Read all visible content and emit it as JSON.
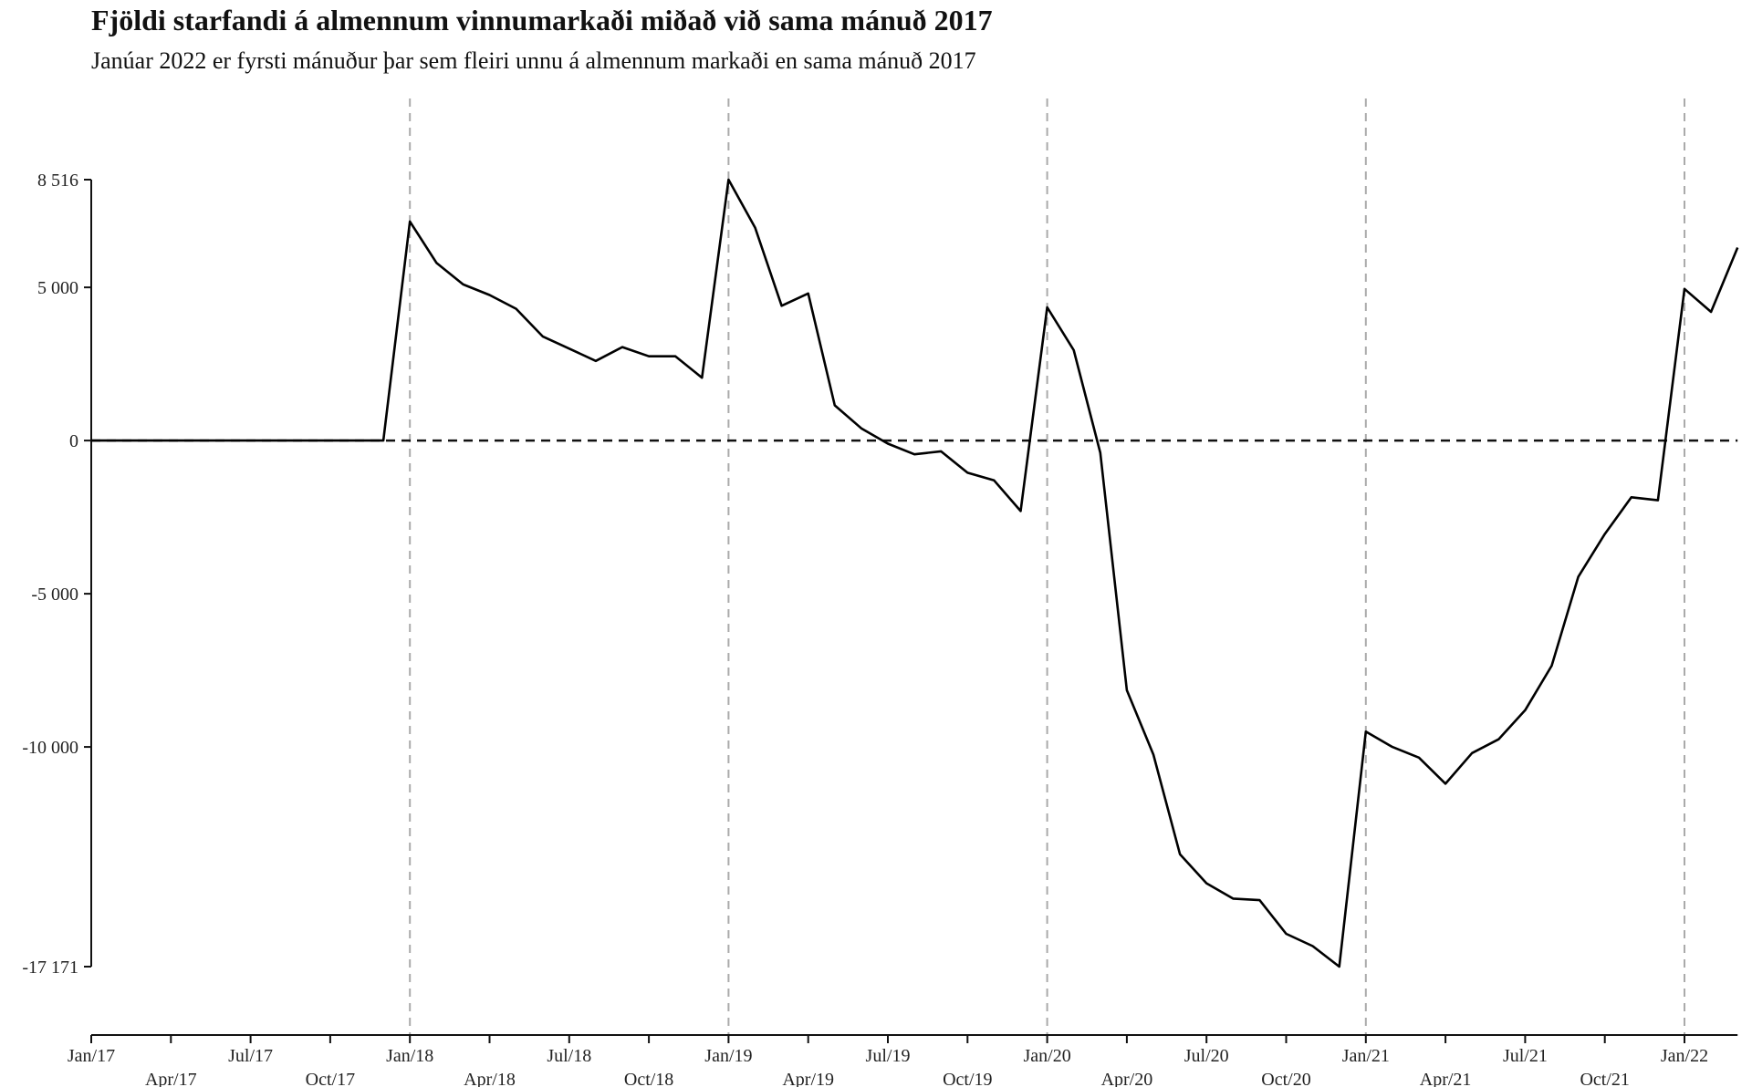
{
  "header": {
    "title": "Fjöldi starfandi á almennum vinnumarkaði miðað við sama mánuð 2017",
    "subtitle": "Janúar 2022 er fyrsti mánuður þar sem fleiri unnu á almennum markaði en sama mánuð 2017"
  },
  "chart_data": {
    "type": "line",
    "title": "Fjöldi starfandi á almennum vinnumarkaði miðað við sama mánuð 2017",
    "subtitle": "Janúar 2022 er fyrsti mánuður þar sem fleiri unnu á almennum markaði en sama mánuð 2017",
    "xlabel": "",
    "ylabel": "",
    "ylim": [
      -17171,
      8516
    ],
    "grid": false,
    "y_ticks": [
      {
        "value": 8516,
        "label": "8 516"
      },
      {
        "value": 5000,
        "label": "5 000"
      },
      {
        "value": 0,
        "label": "0"
      },
      {
        "value": -5000,
        "label": "-5 000"
      },
      {
        "value": -10000,
        "label": "-10 000"
      },
      {
        "value": -17171,
        "label": "-17 171"
      }
    ],
    "x_ticks": [
      {
        "index": 0,
        "label": "Jan/17",
        "row": 1
      },
      {
        "index": 3,
        "label": "Apr/17",
        "row": 2
      },
      {
        "index": 6,
        "label": "Jul/17",
        "row": 1
      },
      {
        "index": 9,
        "label": "Oct/17",
        "row": 2
      },
      {
        "index": 12,
        "label": "Jan/18",
        "row": 1
      },
      {
        "index": 15,
        "label": "Apr/18",
        "row": 2
      },
      {
        "index": 18,
        "label": "Jul/18",
        "row": 1
      },
      {
        "index": 21,
        "label": "Oct/18",
        "row": 2
      },
      {
        "index": 24,
        "label": "Jan/19",
        "row": 1
      },
      {
        "index": 27,
        "label": "Apr/19",
        "row": 2
      },
      {
        "index": 30,
        "label": "Jul/19",
        "row": 1
      },
      {
        "index": 33,
        "label": "Oct/19",
        "row": 2
      },
      {
        "index": 36,
        "label": "Jan/20",
        "row": 1
      },
      {
        "index": 39,
        "label": "Apr/20",
        "row": 2
      },
      {
        "index": 42,
        "label": "Jul/20",
        "row": 1
      },
      {
        "index": 45,
        "label": "Oct/20",
        "row": 2
      },
      {
        "index": 48,
        "label": "Jan/21",
        "row": 1
      },
      {
        "index": 51,
        "label": "Apr/21",
        "row": 2
      },
      {
        "index": 54,
        "label": "Jul/21",
        "row": 1
      },
      {
        "index": 57,
        "label": "Oct/21",
        "row": 2
      },
      {
        "index": 60,
        "label": "Jan/22",
        "row": 1
      }
    ],
    "vertical_markers": [
      "Jan/18",
      "Jan/19",
      "Jan/20",
      "Jan/21",
      "Jan/22"
    ],
    "reference_line": 0,
    "series": [
      {
        "x_start": "Jan/17",
        "values": [
          0,
          0,
          0,
          0,
          0,
          0,
          0,
          0,
          0,
          0,
          0,
          0,
          7150,
          5800,
          5100,
          4750,
          4300,
          3400,
          3000,
          2600,
          3050,
          2750,
          2750,
          2050,
          8516,
          6950,
          4400,
          4800,
          1150,
          400,
          -100,
          -450,
          -350,
          -1050,
          -1300,
          -2300,
          4350,
          2950,
          -400,
          -8150,
          -10250,
          -13500,
          -14450,
          -14950,
          -15000,
          -16100,
          -16500,
          -17171,
          -9500,
          -10000,
          -10350,
          -11200,
          -10200,
          -9750,
          -8800,
          -7350,
          -4450,
          -3050,
          -1850,
          -1950,
          4950,
          4200,
          6300
        ]
      }
    ]
  }
}
